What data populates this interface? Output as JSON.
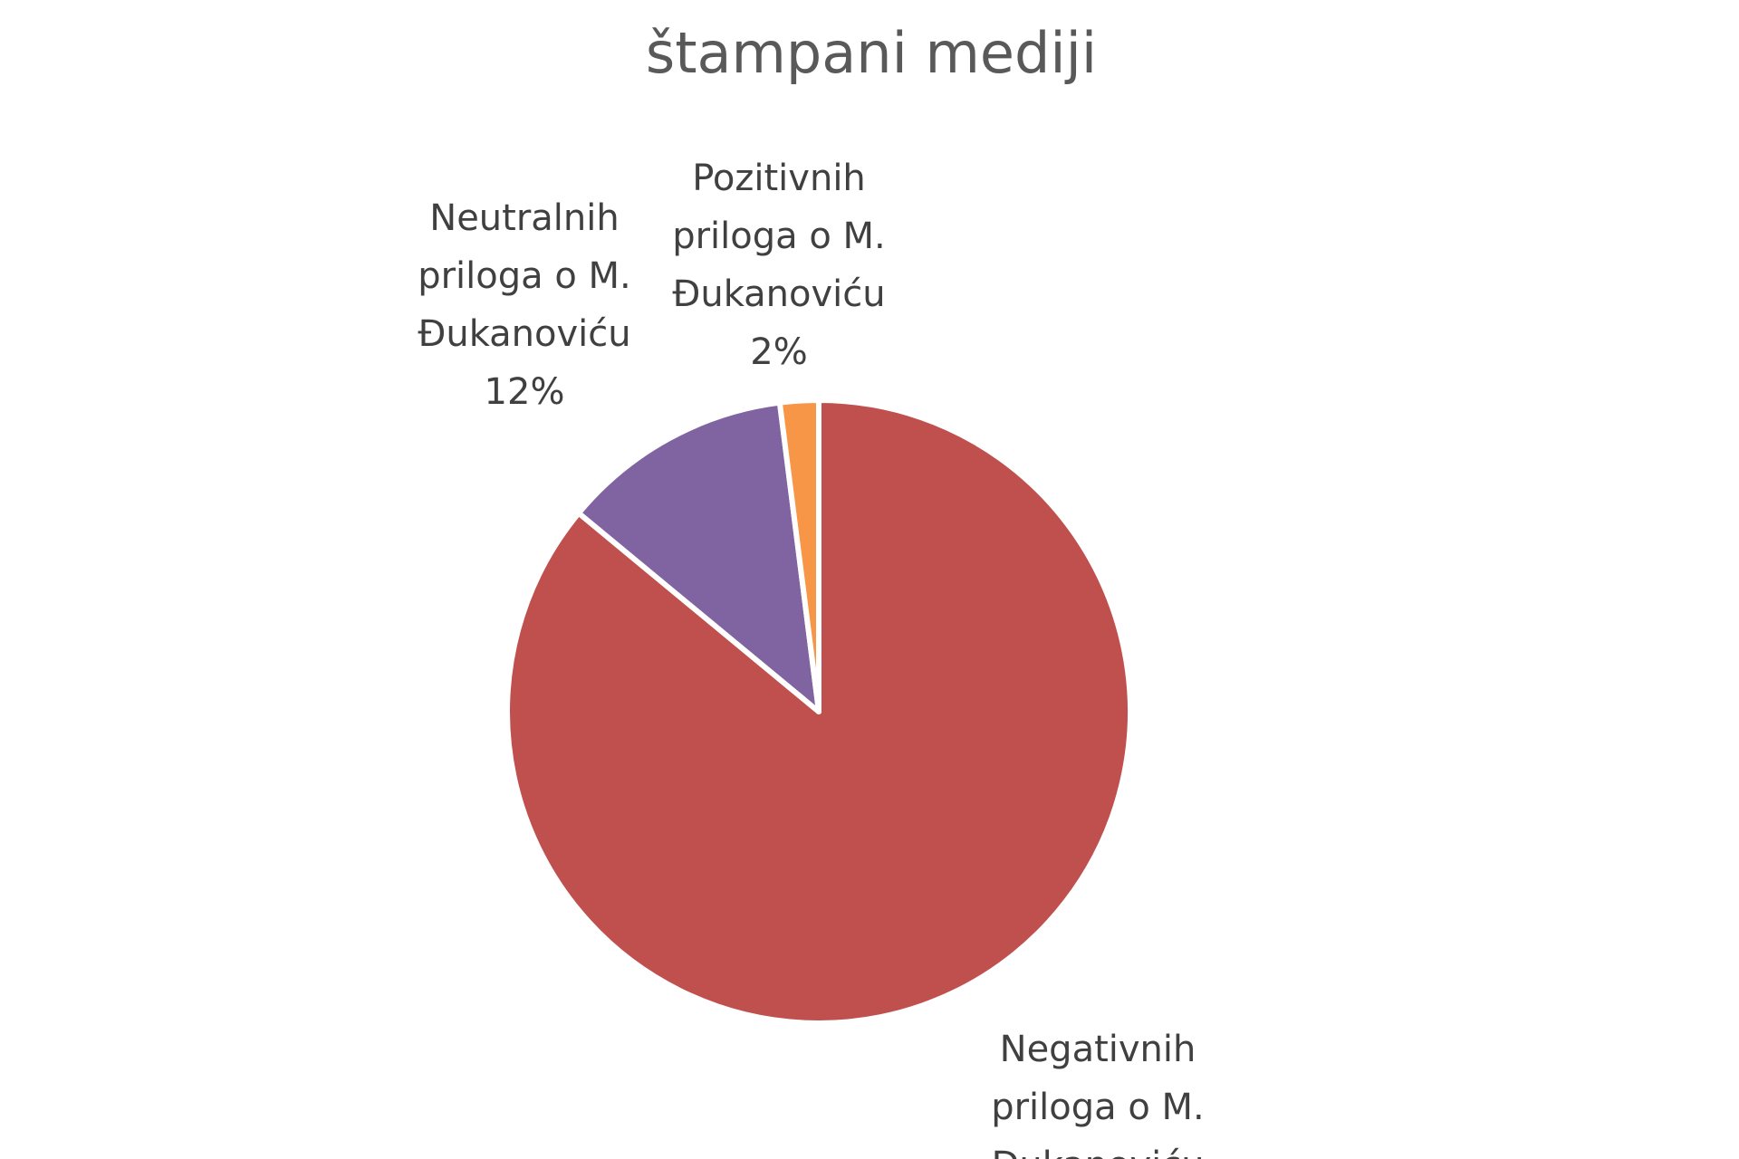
{
  "chart_data": {
    "type": "pie",
    "title": "štampani mediji",
    "start_angle_deg": 0,
    "direction": "clockwise",
    "slices": [
      {
        "name": "Negativnih priloga o M. Đukanoviću",
        "label_lines": [
          "Negativnih",
          "priloga o M.",
          "Đukanoviću"
        ],
        "value": 86,
        "color": "#C0504D"
      },
      {
        "name": "Neutralnih priloga o M. Đukanoviću",
        "label_lines": [
          "Neutralnih",
          "priloga o M.",
          "Đukanoviću",
          "12%"
        ],
        "value": 12,
        "color": "#8064A2"
      },
      {
        "name": "Pozitivnih priloga o M. Đukanoviću",
        "label_lines": [
          "Pozitivnih",
          "priloga o M.",
          "Đukanoviću",
          "2%"
        ],
        "value": 2,
        "color": "#F79646"
      }
    ]
  }
}
